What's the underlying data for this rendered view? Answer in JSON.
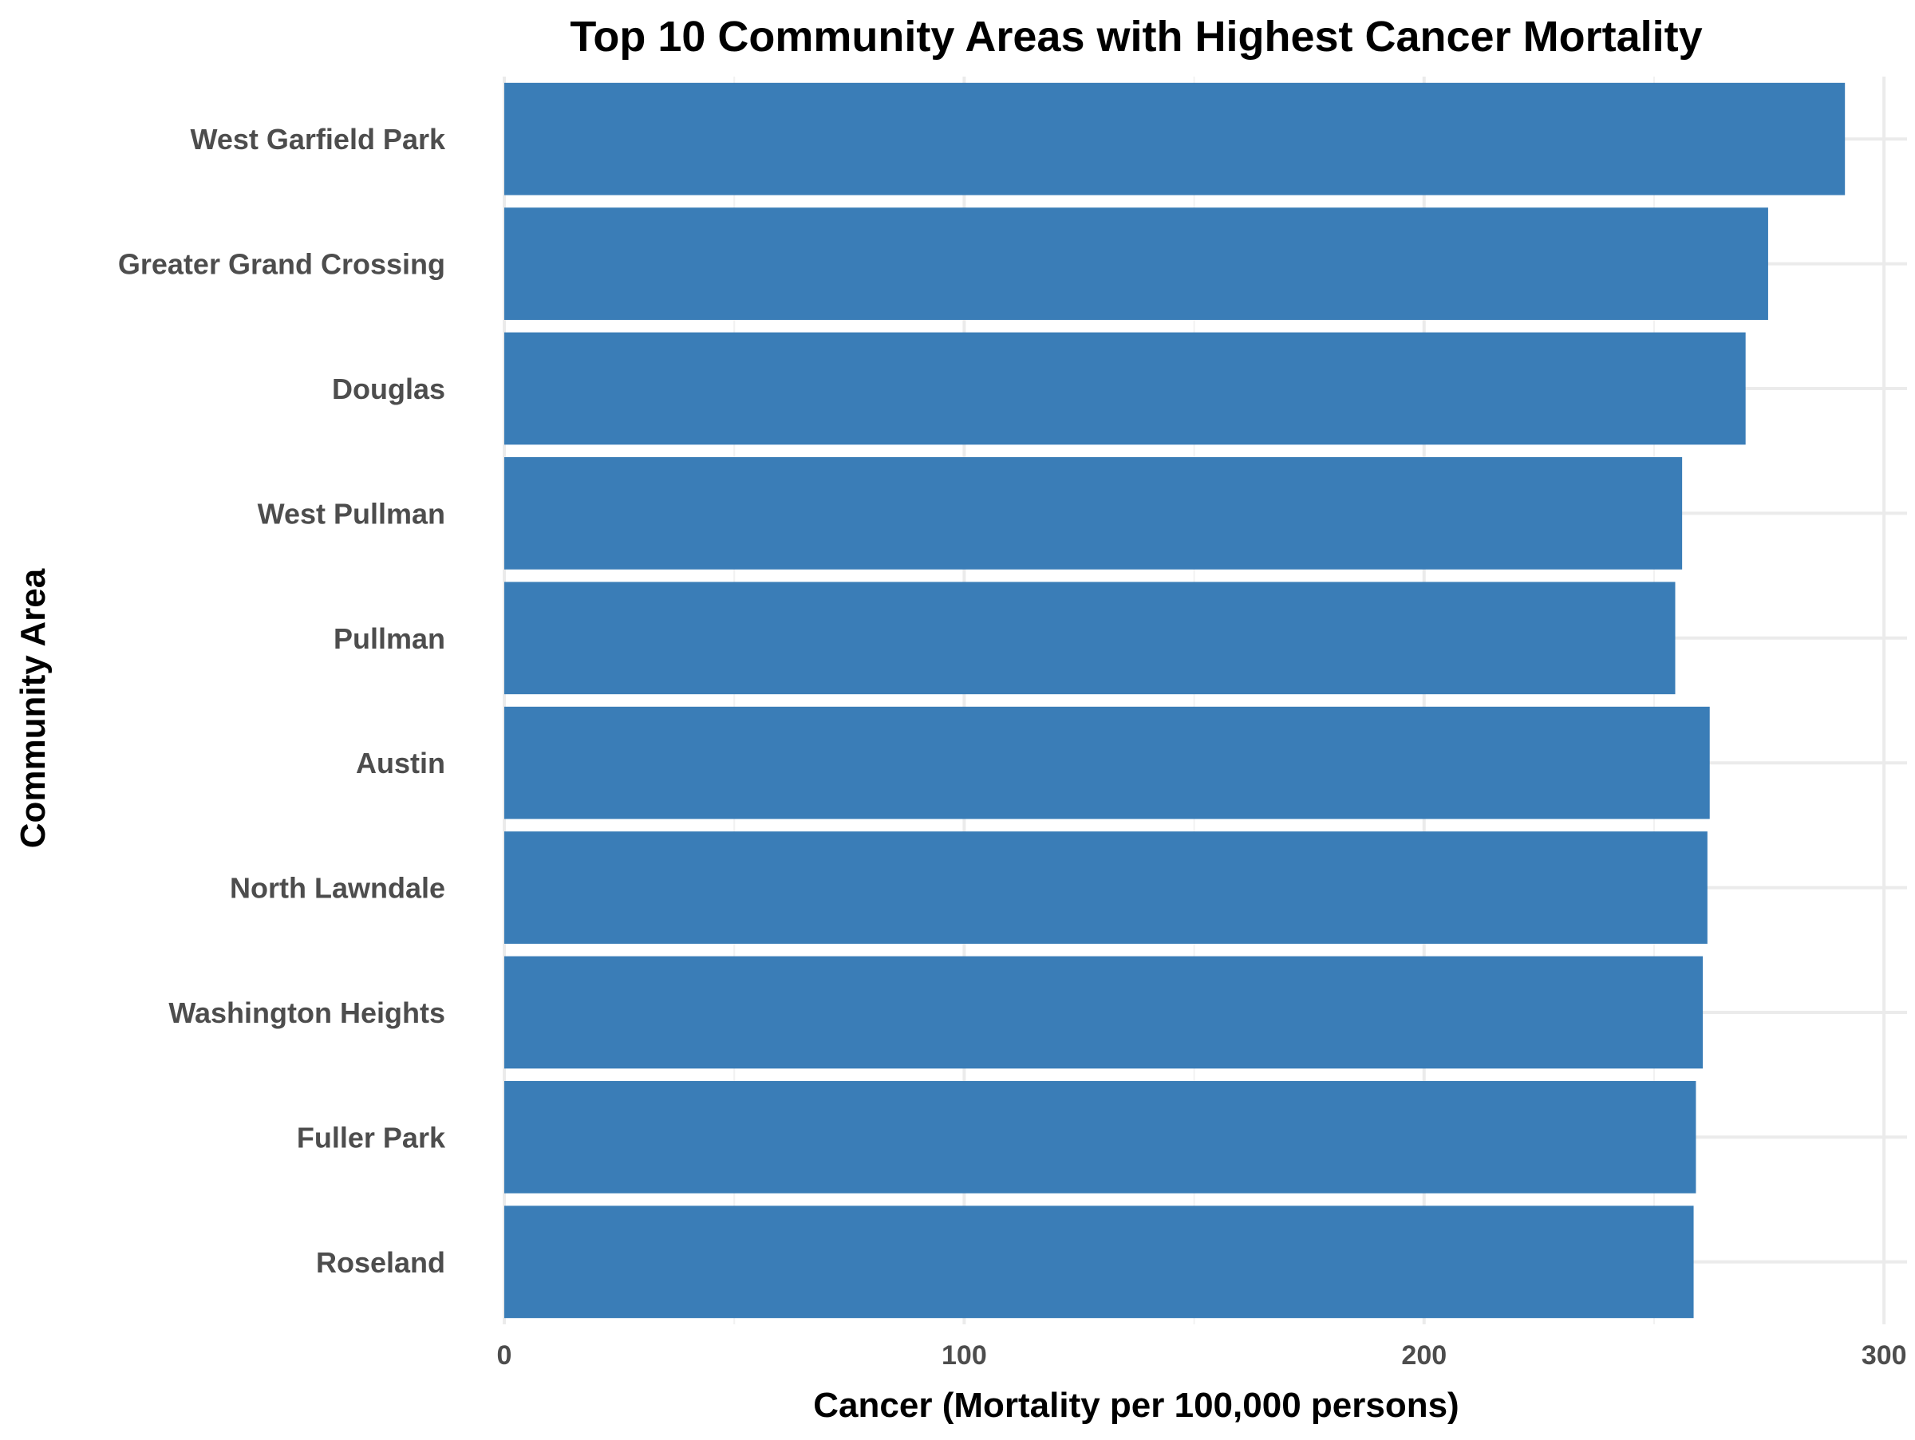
{
  "chart_data": {
    "type": "bar",
    "orientation": "horizontal",
    "title": "Top 10 Community Areas with Highest Cancer Mortality",
    "xlabel": "Cancer (Mortality per 100,000 persons)",
    "ylabel": "Community Area",
    "categories": [
      "West Garfield Park",
      "Greater Grand Crossing",
      "Douglas",
      "West Pullman",
      "Pullman",
      "Austin",
      "North Lawndale",
      "Washington Heights",
      "Fuller Park",
      "Roseland"
    ],
    "values": [
      291.5,
      274.8,
      269.9,
      256.1,
      254.6,
      262.1,
      261.6,
      260.6,
      259.1,
      258.6
    ],
    "xlim": [
      0,
      305
    ],
    "xticks": [
      0,
      100,
      200,
      300
    ],
    "grid": true,
    "legend": "none",
    "bar_color": "#3a7db7"
  }
}
